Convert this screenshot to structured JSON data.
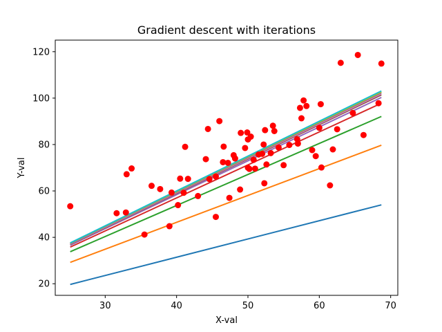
{
  "chart_data": {
    "type": "scatter",
    "title": "Gradient descent with iterations",
    "xlabel": "X-val",
    "ylabel": "Y-val",
    "xlim": [
      23.0,
      71.0
    ],
    "ylim": [
      15.0,
      125.0
    ],
    "xticks": [
      30,
      40,
      50,
      60,
      70
    ],
    "yticks": [
      20,
      40,
      60,
      80,
      100,
      120
    ],
    "grid": false,
    "scatter": {
      "color": "#ff0000",
      "points": [
        [
          25.1,
          53.4
        ],
        [
          31.6,
          50.4
        ],
        [
          32.9,
          50.7
        ],
        [
          33.0,
          67.2
        ],
        [
          33.7,
          69.7
        ],
        [
          35.5,
          41.2
        ],
        [
          36.5,
          62.2
        ],
        [
          37.7,
          60.8
        ],
        [
          39.0,
          44.8
        ],
        [
          39.3,
          59.3
        ],
        [
          40.2,
          53.9
        ],
        [
          40.5,
          65.3
        ],
        [
          41.0,
          59.2
        ],
        [
          41.2,
          79.0
        ],
        [
          41.6,
          65.2
        ],
        [
          43.0,
          57.8
        ],
        [
          44.1,
          73.7
        ],
        [
          44.4,
          86.7
        ],
        [
          44.6,
          65.1
        ],
        [
          45.5,
          48.8
        ],
        [
          45.5,
          66.2
        ],
        [
          46.0,
          90.1
        ],
        [
          46.5,
          72.4
        ],
        [
          46.6,
          79.1
        ],
        [
          47.2,
          72.1
        ],
        [
          47.4,
          57.0
        ],
        [
          48.0,
          75.4
        ],
        [
          48.2,
          74.0
        ],
        [
          48.9,
          60.6
        ],
        [
          49.0,
          85.0
        ],
        [
          49.6,
          78.5
        ],
        [
          49.9,
          85.2
        ],
        [
          50.0,
          82.2
        ],
        [
          50.0,
          70.0
        ],
        [
          50.2,
          69.5
        ],
        [
          50.4,
          83.4
        ],
        [
          50.8,
          73.4
        ],
        [
          51.0,
          69.6
        ],
        [
          51.5,
          75.7
        ],
        [
          52.0,
          76.0
        ],
        [
          52.2,
          80.0
        ],
        [
          52.3,
          63.3
        ],
        [
          52.4,
          86.2
        ],
        [
          52.6,
          71.4
        ],
        [
          53.2,
          76.3
        ],
        [
          53.5,
          88.1
        ],
        [
          53.7,
          85.8
        ],
        [
          54.3,
          78.7
        ],
        [
          55.0,
          71.1
        ],
        [
          55.8,
          79.8
        ],
        [
          56.9,
          82.3
        ],
        [
          57.0,
          80.4
        ],
        [
          57.3,
          95.8
        ],
        [
          57.5,
          91.3
        ],
        [
          57.8,
          99.0
        ],
        [
          58.2,
          96.6
        ],
        [
          59.0,
          77.6
        ],
        [
          59.5,
          75.0
        ],
        [
          60.0,
          87.2
        ],
        [
          60.2,
          97.4
        ],
        [
          60.3,
          70.1
        ],
        [
          61.5,
          62.4
        ],
        [
          61.9,
          77.9
        ],
        [
          62.5,
          86.6
        ],
        [
          63.0,
          115.2
        ],
        [
          64.7,
          93.6
        ],
        [
          65.4,
          118.6
        ],
        [
          66.2,
          84.1
        ],
        [
          68.3,
          97.8
        ],
        [
          68.7,
          114.9
        ]
      ]
    },
    "series": [
      {
        "color": "#1f77b4",
        "x": [
          25.1,
          68.7
        ],
        "y": [
          19.7,
          54.0
        ]
      },
      {
        "color": "#ff7f0e",
        "x": [
          25.1,
          68.7
        ],
        "y": [
          29.2,
          79.7
        ]
      },
      {
        "color": "#2ca02c",
        "x": [
          25.1,
          68.7
        ],
        "y": [
          33.8,
          92.1
        ]
      },
      {
        "color": "#d62728",
        "x": [
          25.1,
          68.7
        ],
        "y": [
          35.8,
          97.8
        ]
      },
      {
        "color": "#9467bd",
        "x": [
          25.1,
          68.7
        ],
        "y": [
          36.6,
          100.3
        ]
      },
      {
        "color": "#8c564b",
        "x": [
          25.1,
          68.7
        ],
        "y": [
          36.9,
          101.4
        ]
      },
      {
        "color": "#e377c2",
        "x": [
          25.1,
          68.7
        ],
        "y": [
          37.1,
          101.9
        ]
      },
      {
        "color": "#7f7f7f",
        "x": [
          25.1,
          68.7
        ],
        "y": [
          37.3,
          102.3
        ]
      },
      {
        "color": "#bcbd22",
        "x": [
          25.1,
          68.7
        ],
        "y": [
          37.5,
          102.7
        ]
      },
      {
        "color": "#17becf",
        "x": [
          25.1,
          68.7
        ],
        "y": [
          37.6,
          103.1
        ]
      }
    ]
  }
}
